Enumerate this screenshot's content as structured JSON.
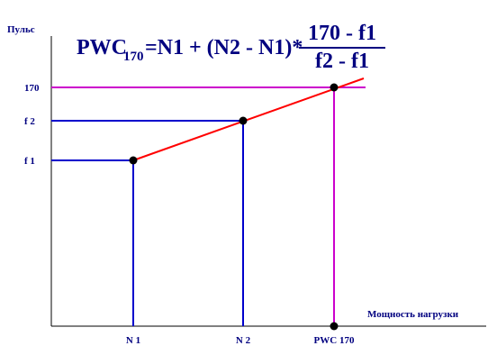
{
  "y_axis_label": "Пульс",
  "x_axis_label": "Мощность нагрузки",
  "y_labels": [
    "170",
    "f 2",
    "f 1"
  ],
  "x_labels": [
    "N 1",
    "N 2",
    "PWC 170"
  ],
  "formula": {
    "lhs": "PWC",
    "lhs_subscript": "170",
    "rhs": "=N1 + (N2 - N1)*",
    "numerator": "170 - f1",
    "denominator": "f2 - f1"
  }
}
